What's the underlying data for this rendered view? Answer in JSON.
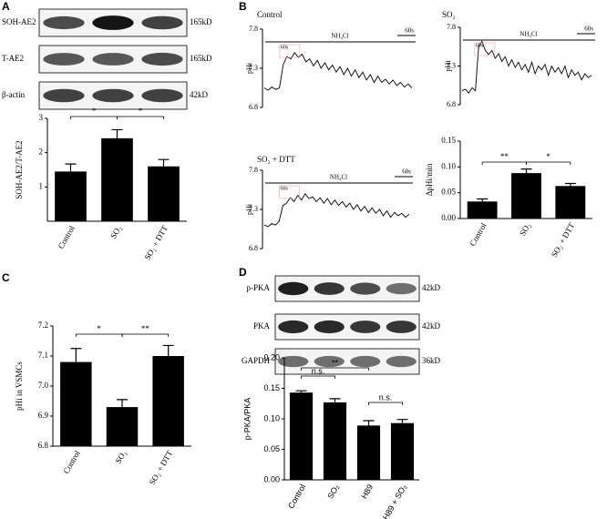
{
  "panels": [
    "A",
    "B",
    "C",
    "D"
  ],
  "blots": [
    {
      "rows": [
        {
          "label": "SOH-AE2",
          "size": "165kD"
        },
        {
          "label": "T-AE2",
          "size": "165kD"
        },
        {
          "label": "β-actin",
          "size": "42kD"
        }
      ]
    },
    {
      "rows": [
        {
          "label": "p-PKA",
          "size": "42kD"
        },
        {
          "label": "PKA",
          "size": "42kD"
        },
        {
          "label": "GAPDH",
          "size": "36kD"
        }
      ]
    }
  ],
  "chart_data": [
    {
      "type": "bar",
      "ylabel": "SOH-AE2/T-AE2",
      "categories": [
        "Control",
        "SO₂",
        "SO₂ + DTT"
      ],
      "values": [
        1.45,
        2.42,
        1.6
      ],
      "errors": [
        0.22,
        0.25,
        0.2
      ],
      "color": "#000000",
      "ylim": [
        0,
        3
      ],
      "yticks": [
        1,
        2,
        3
      ],
      "annotations": [
        "*",
        "*"
      ]
    },
    {
      "type": "line",
      "title": "Control",
      "ylabel": "pHi",
      "color": "#000000",
      "ylim": [
        6.8,
        7.8
      ],
      "yticks": [
        6.8,
        7.3,
        7.8
      ],
      "annotations": [
        "NH₄Cl",
        "60s",
        "60s"
      ],
      "values": [
        7.05,
        7.02,
        7.06,
        7.03,
        7.05,
        7.35,
        7.45,
        7.42,
        7.5,
        7.44,
        7.48,
        7.38,
        7.42,
        7.33,
        7.4,
        7.3,
        7.37,
        7.28,
        7.34,
        7.25,
        7.32,
        7.22,
        7.3,
        7.2,
        7.28,
        7.18,
        7.25,
        7.15,
        7.22,
        7.12,
        7.2,
        7.12,
        7.16,
        7.1,
        7.15,
        7.08,
        7.12,
        7.06,
        7.1,
        7.05
      ]
    },
    {
      "type": "line",
      "title": "SO₂",
      "ylabel": "pHi",
      "color": "#000000",
      "ylim": [
        6.8,
        7.8
      ],
      "yticks": [
        6.8,
        7.3,
        7.8
      ],
      "annotations": [
        "NH₄Cl",
        "60s",
        "60s"
      ],
      "values": [
        6.98,
        7.0,
        6.95,
        7.02,
        6.98,
        7.55,
        7.62,
        7.5,
        7.45,
        7.5,
        7.4,
        7.46,
        7.36,
        7.42,
        7.3,
        7.38,
        7.28,
        7.35,
        7.25,
        7.32,
        7.22,
        7.35,
        7.2,
        7.3,
        7.25,
        7.32,
        7.18,
        7.3,
        7.22,
        7.28,
        7.2,
        7.3,
        7.15,
        7.25,
        7.18,
        7.22,
        7.12,
        7.2,
        7.15,
        7.18
      ]
    },
    {
      "type": "line",
      "title": "SO₂ + DTT",
      "ylabel": "pHi",
      "color": "#000000",
      "ylim": [
        6.8,
        7.8
      ],
      "yticks": [
        6.8,
        7.3,
        7.8
      ],
      "annotations": [
        "NH₄Cl",
        "60s",
        "60s"
      ],
      "values": [
        7.1,
        7.08,
        7.12,
        7.1,
        7.15,
        7.35,
        7.38,
        7.45,
        7.4,
        7.48,
        7.42,
        7.5,
        7.44,
        7.46,
        7.4,
        7.45,
        7.38,
        7.44,
        7.36,
        7.42,
        7.35,
        7.4,
        7.33,
        7.38,
        7.3,
        7.36,
        7.28,
        7.34,
        7.26,
        7.32,
        7.25,
        7.3,
        7.22,
        7.28,
        7.2,
        7.26,
        7.22,
        7.25,
        7.2,
        7.24
      ]
    },
    {
      "type": "bar",
      "ylabel": "ΔpHi/min",
      "categories": [
        "Control",
        "SO₂",
        "SO₂ + DTT"
      ],
      "values": [
        0.033,
        0.088,
        0.063
      ],
      "errors": [
        0.005,
        0.008,
        0.005
      ],
      "color": "#000000",
      "ylim": [
        0,
        0.15
      ],
      "yticks": [
        {
          "value": 0,
          "label": "0.00"
        },
        {
          "value": 0.05,
          "label": "0.05"
        },
        {
          "value": 0.1,
          "label": "0.10"
        },
        {
          "value": 0.15,
          "label": "0.15"
        }
      ],
      "annotations": [
        "**",
        "*"
      ]
    },
    {
      "type": "bar",
      "ylabel": "pHi in VSMCs",
      "categories": [
        "Control",
        "SO₂",
        "SO₂ + DTT"
      ],
      "values": [
        7.08,
        6.93,
        7.1
      ],
      "errors": [
        0.045,
        0.025,
        0.035
      ],
      "color": "#000000",
      "ylim": [
        6.8,
        7.2
      ],
      "yticks": [
        6.8,
        6.9,
        {
          "value": 7,
          "label": "7.0"
        },
        7.1,
        7.2
      ],
      "annotations": [
        "*",
        "**"
      ]
    },
    {
      "type": "bar",
      "ylabel": "p-PKA/PKA",
      "categories": [
        "Control",
        "SO₂",
        "H89",
        "H89 + SO₂"
      ],
      "values": [
        0.143,
        0.127,
        0.089,
        0.093
      ],
      "errors": [
        0.003,
        0.006,
        0.008,
        0.006
      ],
      "color": "#000000",
      "ylim": [
        0,
        0.2
      ],
      "yticks": [
        {
          "value": 0,
          "label": "0.00"
        },
        0.05,
        {
          "value": 0.1,
          "label": "0.10"
        },
        0.15,
        {
          "value": 0.2,
          "label": "0.20"
        }
      ],
      "annotations": [
        "n.s.",
        "**",
        "n.s."
      ]
    }
  ]
}
